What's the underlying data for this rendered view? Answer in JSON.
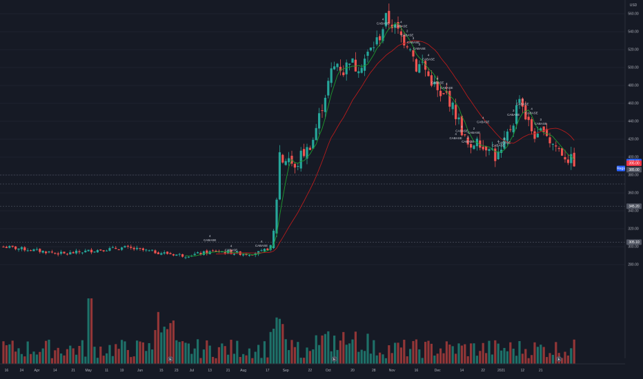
{
  "chart_data": {
    "type": "candlestick",
    "currency": "USD",
    "ylim": [
      270,
      570
    ],
    "y_ticks": [
      280,
      300,
      320,
      340,
      360,
      380,
      400,
      420,
      440,
      460,
      480,
      500,
      520,
      540,
      560
    ],
    "y_tick_labels": [
      "280.00",
      "300.00",
      "320.00",
      "340.00",
      "360.00",
      "380.00",
      "400.00",
      "420.00",
      "440.00",
      "460.00",
      "480.00",
      "500.00",
      "520.00",
      "540.00",
      "560.00"
    ],
    "x_ticks": [
      {
        "i": 1,
        "label": "16"
      },
      {
        "i": 6,
        "label": "24"
      },
      {
        "i": 11,
        "label": "Apr"
      },
      {
        "i": 17,
        "label": "14"
      },
      {
        "i": 23,
        "label": "21"
      },
      {
        "i": 28,
        "label": "May"
      },
      {
        "i": 34,
        "label": "11"
      },
      {
        "i": 39,
        "label": "19"
      },
      {
        "i": 45,
        "label": "Jun"
      },
      {
        "i": 52,
        "label": "15"
      },
      {
        "i": 57,
        "label": "23"
      },
      {
        "i": 62,
        "label": "Jul"
      },
      {
        "i": 68,
        "label": "13"
      },
      {
        "i": 74,
        "label": "21"
      },
      {
        "i": 79,
        "label": "Aug"
      },
      {
        "i": 87,
        "label": "17"
      },
      {
        "i": 93,
        "label": "Sep"
      },
      {
        "i": 101,
        "label": "22"
      },
      {
        "i": 107,
        "label": "Oct"
      },
      {
        "i": 115,
        "label": "20"
      },
      {
        "i": 122,
        "label": "28"
      },
      {
        "i": 128,
        "label": "Nov"
      },
      {
        "i": 136,
        "label": "16"
      },
      {
        "i": 143,
        "label": "Dec"
      },
      {
        "i": 151,
        "label": "14"
      },
      {
        "i": 158,
        "label": "22"
      },
      {
        "i": 164,
        "label": "2021"
      },
      {
        "i": 171,
        "label": "12"
      },
      {
        "i": 177,
        "label": "21"
      }
    ],
    "price_tags": [
      {
        "value": "395.00",
        "bg": "#2962ff",
        "price": 395.0
      },
      {
        "value": "395.00",
        "bg": "#f23645",
        "price": 393.2
      },
      {
        "value": "385.00",
        "bg": "#505562",
        "price": 386.0
      },
      {
        "value": "345.20",
        "bg": "#505562",
        "price": 345.2
      },
      {
        "value": "305.10",
        "bg": "#505562",
        "price": 305.1
      }
    ],
    "series_tag": "Regs",
    "annotations": [
      {
        "i": 68,
        "num": "4",
        "text": "CABASE",
        "price": 306
      },
      {
        "i": 75,
        "num": "4",
        "text": "CABASE",
        "price": 295
      },
      {
        "i": 85,
        "num": "4",
        "text": "CABASE",
        "price": 300
      },
      {
        "i": 125,
        "num": "4",
        "text": "CABASE",
        "price": 548
      },
      {
        "i": 131,
        "num": "4",
        "text": "CABASE",
        "price": 545
      },
      {
        "i": 133,
        "num": "2",
        "text": "CABASE",
        "price": 535
      },
      {
        "i": 135,
        "num": "3",
        "text": "CABASE",
        "price": 527
      },
      {
        "i": 137,
        "num": "3",
        "text": "CABASE",
        "price": 520
      },
      {
        "i": 140,
        "num": "4",
        "text": "CABASE",
        "price": 508
      },
      {
        "i": 143,
        "num": "4",
        "text": "CABASE",
        "price": 482
      },
      {
        "i": 146,
        "num": "4",
        "text": "CABASE",
        "price": 476
      },
      {
        "i": 149,
        "num": "4",
        "text": "CABASE",
        "price": 420
      },
      {
        "i": 151,
        "num": "4",
        "text": "CABASE",
        "price": 428
      },
      {
        "i": 153,
        "num": "3",
        "text": "CABASE",
        "price": 416
      },
      {
        "i": 155,
        "num": "2",
        "text": "CABASE",
        "price": 426
      },
      {
        "i": 158,
        "num": "4",
        "text": "CABASE",
        "price": 438
      },
      {
        "i": 163,
        "num": "4",
        "text": "CABASE",
        "price": 412
      },
      {
        "i": 165,
        "num": "2",
        "text": "CABASE",
        "price": 415
      },
      {
        "i": 168,
        "num": "3",
        "text": "CABASE",
        "price": 446
      },
      {
        "i": 171,
        "num": "3",
        "text": "CABASE",
        "price": 458
      },
      {
        "i": 174,
        "num": "4",
        "text": "CABASE",
        "price": 448
      },
      {
        "i": 177,
        "num": "3",
        "text": "CABASE",
        "price": 436
      }
    ],
    "events": [
      {
        "i": 55,
        "label": "E"
      },
      {
        "i": 109,
        "label": "E"
      },
      {
        "i": 183,
        "label": "E"
      }
    ],
    "up_color": "#26a69a",
    "down_color": "#ef5350",
    "ma_fast_color": "#1e9c2e",
    "ma_slow_color": "#b71c1c",
    "levels": [
      380,
      370,
      345.2,
      305.1
    ]
  }
}
